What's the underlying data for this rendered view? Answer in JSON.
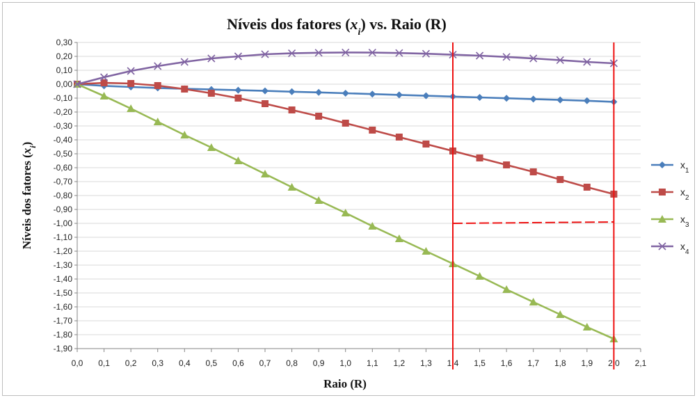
{
  "chart_data": {
    "type": "line",
    "title": "Níveis dos fatores (x_i) vs. Raio (R)",
    "title_parts": {
      "prefix": "Níveis dos fatores (",
      "var": "x",
      "sub": "i",
      "suffix": ") vs. Raio (R)"
    },
    "ylabel_parts": {
      "prefix": "Níveis dos fatores (",
      "var": "x",
      "sub": "i",
      "suffix": ")"
    },
    "xlabel": "Raio (R)",
    "xlim": [
      0.0,
      2.1
    ],
    "ylim": [
      -1.9,
      0.3
    ],
    "x_step": 0.1,
    "y_step": 0.1,
    "decimal_separator": ",",
    "grid": {
      "horizontal": true,
      "vertical": false
    },
    "legend_position": "right",
    "x": [
      0.0,
      0.1,
      0.2,
      0.3,
      0.4,
      0.5,
      0.6,
      0.7,
      0.8,
      0.9,
      1.0,
      1.1,
      1.2,
      1.3,
      1.4,
      1.5,
      1.6,
      1.7,
      1.8,
      1.9,
      2.0
    ],
    "series": [
      {
        "name": "x1",
        "label_main": "x",
        "label_sub": "1",
        "color": "#4a7ebb",
        "marker": "diamond",
        "values": [
          0.0,
          -0.012,
          -0.02,
          -0.027,
          -0.033,
          -0.038,
          -0.043,
          -0.048,
          -0.054,
          -0.059,
          -0.065,
          -0.071,
          -0.077,
          -0.083,
          -0.089,
          -0.095,
          -0.101,
          -0.107,
          -0.113,
          -0.119,
          -0.127
        ]
      },
      {
        "name": "x2",
        "label_main": "x",
        "label_sub": "2",
        "color": "#be4b48",
        "marker": "square",
        "values": [
          0.0,
          0.01,
          0.005,
          -0.01,
          -0.035,
          -0.065,
          -0.1,
          -0.14,
          -0.185,
          -0.23,
          -0.28,
          -0.33,
          -0.38,
          -0.43,
          -0.48,
          -0.53,
          -0.58,
          -0.63,
          -0.685,
          -0.74,
          -0.79
        ]
      },
      {
        "name": "x3",
        "label_main": "x",
        "label_sub": "3",
        "color": "#98b954",
        "marker": "triangle",
        "values": [
          0.0,
          -0.085,
          -0.175,
          -0.27,
          -0.365,
          -0.455,
          -0.55,
          -0.645,
          -0.74,
          -0.835,
          -0.925,
          -1.02,
          -1.11,
          -1.2,
          -1.29,
          -1.38,
          -1.475,
          -1.565,
          -1.655,
          -1.745,
          -1.83
        ]
      },
      {
        "name": "x4",
        "label_main": "x",
        "label_sub": "4",
        "color": "#8064a2",
        "marker": "x",
        "values": [
          0.0,
          0.05,
          0.095,
          0.13,
          0.16,
          0.185,
          0.2,
          0.215,
          0.222,
          0.226,
          0.228,
          0.227,
          0.224,
          0.219,
          0.212,
          0.205,
          0.196,
          0.185,
          0.173,
          0.16,
          0.15
        ]
      }
    ],
    "annotations": [
      {
        "kind": "vertical-line",
        "x": 1.4,
        "color": "#ee1111"
      },
      {
        "kind": "vertical-line",
        "x": 2.0,
        "color": "#ee1111"
      },
      {
        "kind": "dashed-line",
        "x": [
          1.4,
          2.0
        ],
        "y": [
          -1.0,
          -0.99
        ],
        "color": "#ee1111"
      }
    ]
  }
}
